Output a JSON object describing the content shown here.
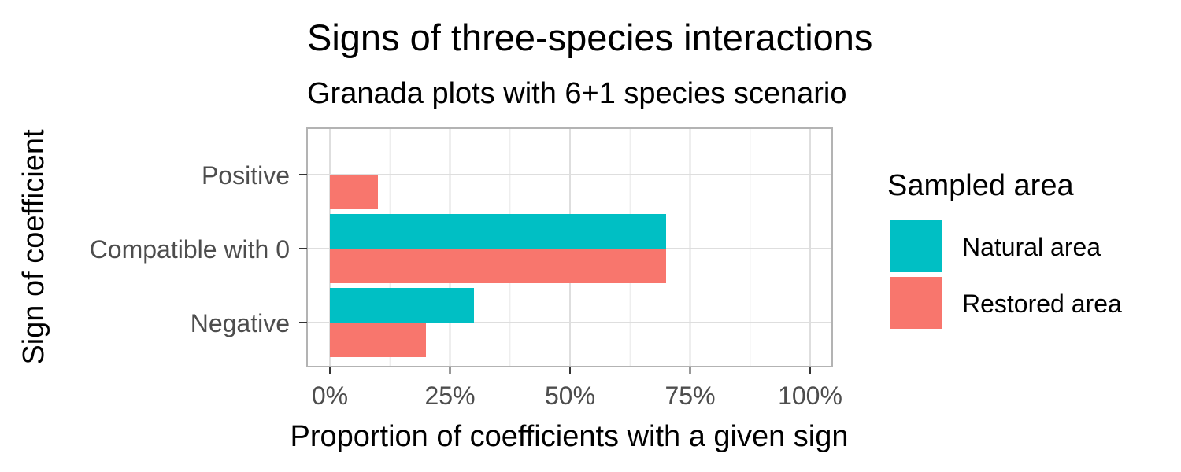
{
  "chart_data": {
    "type": "bar",
    "orientation": "horizontal",
    "title": "Signs of three-species interactions",
    "subtitle": "Granada plots with 6+1 species scenario",
    "xlabel": "Proportion of coefficients with a given sign",
    "ylabel": "Sign of coefficient",
    "categories": [
      "Positive",
      "Compatible with 0",
      "Negative"
    ],
    "xlim": [
      0,
      1
    ],
    "xticks": [
      0,
      0.25,
      0.5,
      0.75,
      1
    ],
    "xtick_labels": [
      "0%",
      "25%",
      "50%",
      "75%",
      "100%"
    ],
    "grid": true,
    "legend": {
      "title": "Sampled area",
      "position": "right"
    },
    "series": [
      {
        "name": "Natural area",
        "color": "#00BFC4",
        "values": [
          null,
          0.7,
          0.3
        ]
      },
      {
        "name": "Restored area",
        "color": "#F8766D",
        "values": [
          0.1,
          0.7,
          0.2
        ]
      }
    ]
  }
}
